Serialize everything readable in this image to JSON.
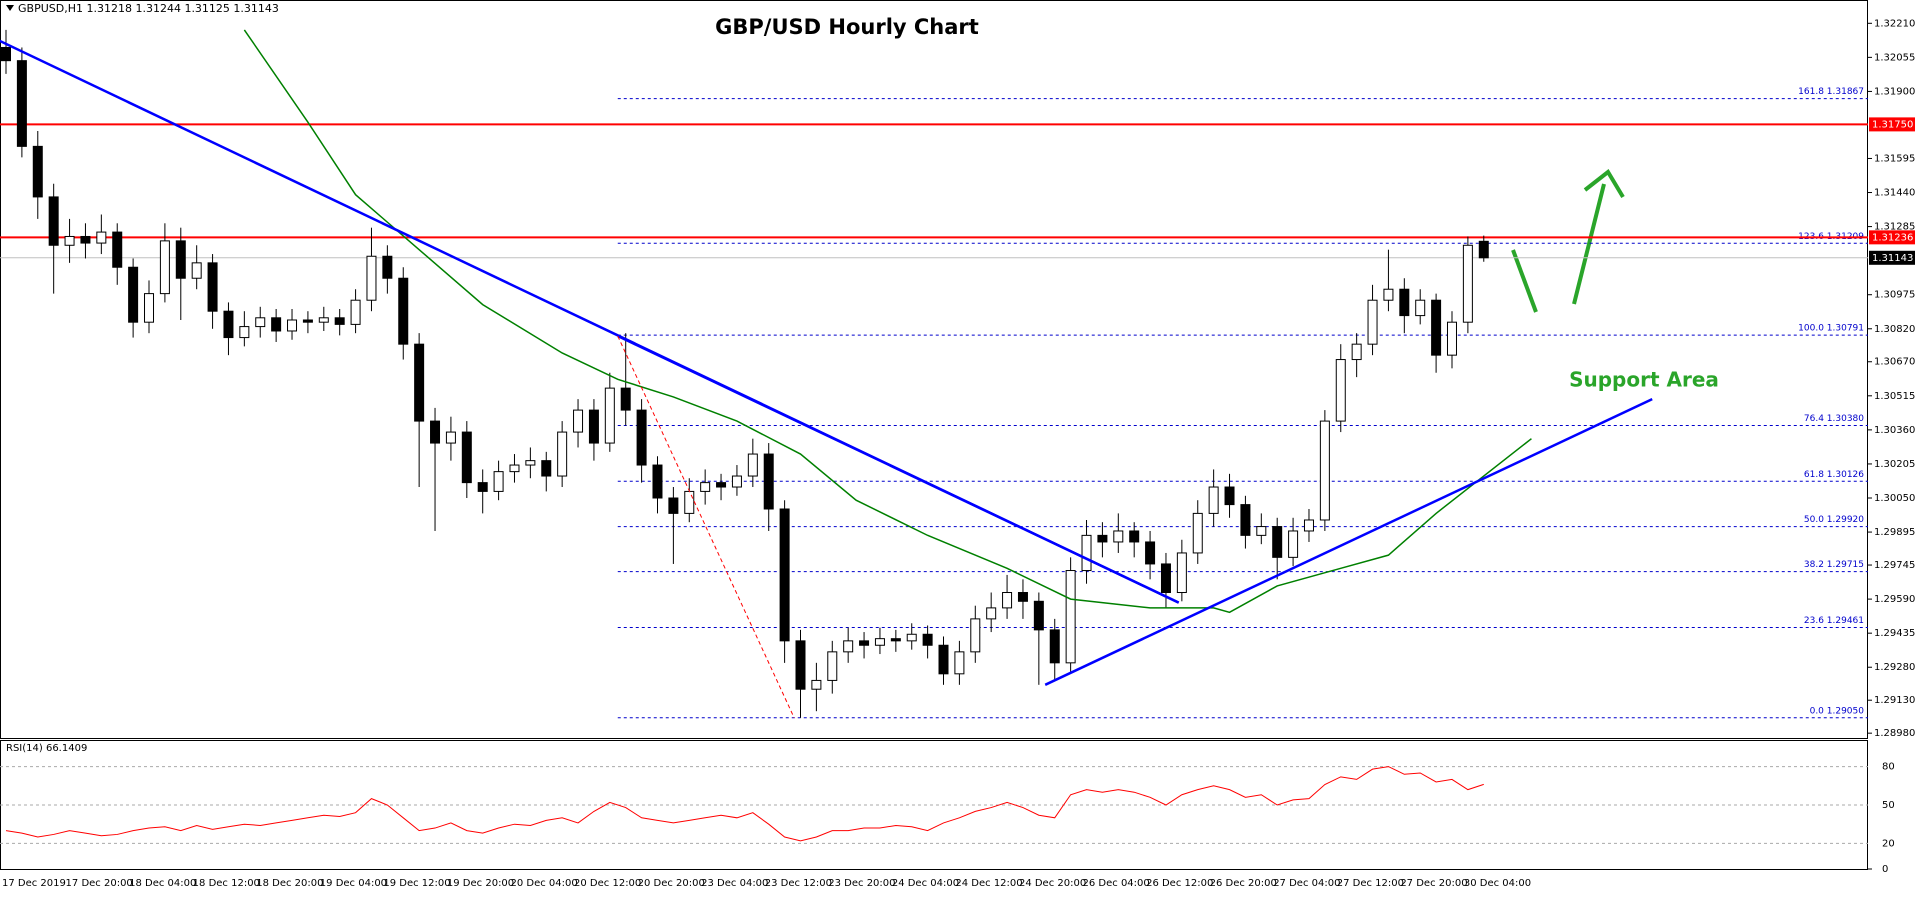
{
  "chart_data": {
    "type": "candlestick",
    "title": "GBP/USD Hourly Chart",
    "header": "GBPUSD,H1  1.31218 1.31244 1.31125 1.31143",
    "annotation": "Support Area",
    "categories": [
      "17 Dec 2019",
      null,
      null,
      null,
      "17 Dec 20:00",
      null,
      null,
      null,
      "18 Dec 04:00",
      null,
      null,
      null,
      "18 Dec 12:00",
      null,
      null,
      null,
      "18 Dec 20:00",
      null,
      null,
      null,
      "19 Dec 04:00",
      null,
      null,
      null,
      "19 Dec 12:00",
      null,
      null,
      null,
      "19 Dec 20:00",
      null,
      null,
      null,
      "20 Dec 04:00",
      null,
      null,
      null,
      "20 Dec 12:00",
      null,
      null,
      null,
      "20 Dec 20:00",
      null,
      null,
      null,
      "23 Dec 04:00",
      null,
      null,
      null,
      "23 Dec 12:00",
      null,
      null,
      null,
      "23 Dec 20:00",
      null,
      null,
      null,
      "24 Dec 04:00",
      null,
      null,
      null,
      "24 Dec 12:00",
      null,
      null,
      null,
      "24 Dec 20:00",
      null,
      null,
      null,
      "26 Dec 04:00",
      null,
      null,
      null,
      "26 Dec 12:00",
      null,
      null,
      null,
      "26 Dec 20:00",
      null,
      null,
      null,
      "27 Dec 04:00",
      null,
      null,
      null,
      "27 Dec 12:00",
      null,
      null,
      null,
      "27 Dec 20:00",
      null,
      null,
      null,
      "30 Dec 04:00",
      null
    ],
    "ohlc": [
      [
        1.321,
        1.3218,
        1.3198,
        1.3204
      ],
      [
        1.3204,
        1.321,
        1.316,
        1.3165
      ],
      [
        1.3165,
        1.3172,
        1.3132,
        1.3142
      ],
      [
        1.3142,
        1.3148,
        1.3098,
        1.312
      ],
      [
        1.312,
        1.3132,
        1.3112,
        1.3124
      ],
      [
        1.3124,
        1.313,
        1.3114,
        1.3121
      ],
      [
        1.3121,
        1.3134,
        1.3116,
        1.3126
      ],
      [
        1.3126,
        1.313,
        1.3102,
        1.311
      ],
      [
        1.311,
        1.3114,
        1.3078,
        1.3085
      ],
      [
        1.3085,
        1.3104,
        1.308,
        1.3098
      ],
      [
        1.3098,
        1.313,
        1.3094,
        1.3122
      ],
      [
        1.3122,
        1.3128,
        1.3086,
        1.3105
      ],
      [
        1.3105,
        1.312,
        1.31,
        1.3112
      ],
      [
        1.3112,
        1.3116,
        1.3082,
        1.309
      ],
      [
        1.309,
        1.3094,
        1.307,
        1.3078
      ],
      [
        1.3078,
        1.309,
        1.3074,
        1.3083
      ],
      [
        1.3083,
        1.3092,
        1.3078,
        1.3087
      ],
      [
        1.3087,
        1.3091,
        1.3076,
        1.3081
      ],
      [
        1.3081,
        1.3091,
        1.3077,
        1.3086
      ],
      [
        1.3086,
        1.309,
        1.308,
        1.3085
      ],
      [
        1.3085,
        1.3092,
        1.3081,
        1.3087
      ],
      [
        1.3087,
        1.3091,
        1.3079,
        1.3084
      ],
      [
        1.3084,
        1.31,
        1.308,
        1.3095
      ],
      [
        1.3095,
        1.3128,
        1.309,
        1.3115
      ],
      [
        1.3115,
        1.312,
        1.3098,
        1.3105
      ],
      [
        1.3105,
        1.311,
        1.3068,
        1.3075
      ],
      [
        1.3075,
        1.308,
        1.301,
        1.304
      ],
      [
        1.304,
        1.3046,
        1.299,
        1.303
      ],
      [
        1.303,
        1.3042,
        1.3022,
        1.3035
      ],
      [
        1.3035,
        1.304,
        1.3005,
        1.3012
      ],
      [
        1.3012,
        1.3018,
        1.2998,
        1.3008
      ],
      [
        1.3008,
        1.3022,
        1.3004,
        1.3017
      ],
      [
        1.3017,
        1.3025,
        1.3012,
        1.302
      ],
      [
        1.302,
        1.3028,
        1.3014,
        1.3022
      ],
      [
        1.3022,
        1.3026,
        1.3008,
        1.3015
      ],
      [
        1.3015,
        1.304,
        1.301,
        1.3035
      ],
      [
        1.3035,
        1.305,
        1.3028,
        1.3045
      ],
      [
        1.3045,
        1.305,
        1.3022,
        1.303
      ],
      [
        1.303,
        1.3062,
        1.3026,
        1.3055
      ],
      [
        1.3055,
        1.308,
        1.3038,
        1.3045
      ],
      [
        1.3045,
        1.305,
        1.3012,
        1.302
      ],
      [
        1.302,
        1.3024,
        1.2998,
        1.3005
      ],
      [
        1.3005,
        1.301,
        1.2975,
        1.2998
      ],
      [
        1.2998,
        1.3014,
        1.2994,
        1.3008
      ],
      [
        1.3008,
        1.3018,
        1.3002,
        1.3012
      ],
      [
        1.3012,
        1.3016,
        1.3004,
        1.301
      ],
      [
        1.301,
        1.302,
        1.3006,
        1.3015
      ],
      [
        1.3015,
        1.3032,
        1.301,
        1.3025
      ],
      [
        1.3025,
        1.303,
        1.299,
        1.3
      ],
      [
        1.3,
        1.3004,
        1.293,
        1.294
      ],
      [
        1.294,
        1.2945,
        1.2905,
        1.2918
      ],
      [
        1.2918,
        1.293,
        1.2908,
        1.2922
      ],
      [
        1.2922,
        1.294,
        1.2916,
        1.2935
      ],
      [
        1.2935,
        1.2946,
        1.293,
        1.294
      ],
      [
        1.294,
        1.2944,
        1.2932,
        1.2938
      ],
      [
        1.2938,
        1.2946,
        1.2934,
        1.2941
      ],
      [
        1.2941,
        1.2945,
        1.2935,
        1.294
      ],
      [
        1.294,
        1.2948,
        1.2936,
        1.2943
      ],
      [
        1.2943,
        1.2947,
        1.2932,
        1.2938
      ],
      [
        1.2938,
        1.2942,
        1.292,
        1.2925
      ],
      [
        1.2925,
        1.294,
        1.292,
        1.2935
      ],
      [
        1.2935,
        1.2956,
        1.293,
        1.295
      ],
      [
        1.295,
        1.2962,
        1.2944,
        1.2955
      ],
      [
        1.2955,
        1.297,
        1.295,
        1.2962
      ],
      [
        1.2962,
        1.2968,
        1.295,
        1.2958
      ],
      [
        1.2958,
        1.2962,
        1.292,
        1.2945
      ],
      [
        1.2945,
        1.295,
        1.2922,
        1.293
      ],
      [
        1.293,
        1.2978,
        1.2926,
        1.2972
      ],
      [
        1.2972,
        1.2995,
        1.2966,
        1.2988
      ],
      [
        1.2988,
        1.2994,
        1.2978,
        1.2985
      ],
      [
        1.2985,
        1.2998,
        1.298,
        1.299
      ],
      [
        1.299,
        1.2994,
        1.2978,
        1.2985
      ],
      [
        1.2985,
        1.299,
        1.2968,
        1.2975
      ],
      [
        1.2975,
        1.298,
        1.2955,
        1.2962
      ],
      [
        1.2962,
        1.2986,
        1.2958,
        1.298
      ],
      [
        1.298,
        1.3004,
        1.2975,
        1.2998
      ],
      [
        1.2998,
        1.3018,
        1.2992,
        1.301
      ],
      [
        1.301,
        1.3016,
        1.2996,
        1.3002
      ],
      [
        1.3002,
        1.3006,
        1.2982,
        1.2988
      ],
      [
        1.2988,
        1.2998,
        1.2984,
        1.2992
      ],
      [
        1.2992,
        1.2996,
        1.2968,
        1.2978
      ],
      [
        1.2978,
        1.2996,
        1.2974,
        1.299
      ],
      [
        1.299,
        1.3,
        1.2985,
        1.2995
      ],
      [
        1.2995,
        1.3045,
        1.299,
        1.304
      ],
      [
        1.304,
        1.3075,
        1.3035,
        1.3068
      ],
      [
        1.3068,
        1.308,
        1.306,
        1.3075
      ],
      [
        1.3075,
        1.3102,
        1.307,
        1.3095
      ],
      [
        1.3095,
        1.3118,
        1.309,
        1.31
      ],
      [
        1.31,
        1.3105,
        1.308,
        1.3088
      ],
      [
        1.3088,
        1.31,
        1.3084,
        1.3095
      ],
      [
        1.3095,
        1.3098,
        1.3062,
        1.307
      ],
      [
        1.307,
        1.309,
        1.3064,
        1.3085
      ],
      [
        1.3085,
        1.3124,
        1.308,
        1.312
      ],
      [
        1.31218,
        1.31244,
        1.31125,
        1.31143
      ]
    ],
    "up_color": "#ffffff",
    "down_color": "#000000",
    "ylim": [
      1.28958,
      1.32316
    ],
    "yticks": [
      {
        "value": 1.3221,
        "label": "1.32210"
      },
      1.32055,
      {
        "value": 1.319,
        "label": "1.31900"
      },
      1.31595,
      {
        "value": 1.3144,
        "label": "1.31440"
      },
      1.31285,
      1.30975,
      {
        "value": 1.3082,
        "label": "1.30820"
      },
      {
        "value": 1.3067,
        "label": "1.30670"
      },
      1.30515,
      {
        "value": 1.3036,
        "label": "1.30360"
      },
      1.30205,
      {
        "value": 1.3005,
        "label": "1.30050"
      },
      1.29895,
      1.29745,
      {
        "value": 1.2959,
        "label": "1.29590"
      },
      1.29435,
      {
        "value": 1.2928,
        "label": "1.29280"
      },
      {
        "value": 1.2913,
        "label": "1.29130"
      },
      {
        "value": 1.2898,
        "label": "1.28980"
      }
    ],
    "hlines": [
      {
        "value": 1.3175,
        "label": "1.31750",
        "color": "#ff0000",
        "label_fill": "#ff0000"
      },
      {
        "value": 1.31236,
        "label": "1.31236",
        "color": "#ff0000",
        "label_fill": "#ff0000"
      },
      {
        "value": 1.31143,
        "label": "1.31143",
        "color": "#c0c0c0",
        "label_fill": "#000000"
      }
    ],
    "fib": {
      "x": 38.5,
      "color": "#0000cc",
      "levels": [
        {
          "value": 1.31867,
          "label": "161.8 1.31867"
        },
        {
          "value": 1.31209,
          "label": "123.6 1.31209"
        },
        {
          "value": 1.30791,
          "label": "100.0 1.30791"
        },
        {
          "value": 1.3038,
          "label": "76.4 1.30380"
        },
        {
          "value": 1.30126,
          "label": "61.8 1.30126"
        },
        {
          "value": 1.2992,
          "label": "50.0 1.29920"
        },
        {
          "value": 1.29715,
          "label": "38.2 1.29715"
        },
        {
          "value": 1.29461,
          "label": "23.6 1.29461"
        },
        {
          "value": 1.2905,
          "label": "0.0 1.29050"
        }
      ]
    },
    "ma": {
      "color": "#008000",
      "x": [
        15,
        19,
        22,
        26,
        30,
        35,
        38.5,
        42,
        46,
        50,
        53.5,
        58,
        63,
        67,
        72,
        76,
        77,
        80,
        84,
        87,
        90,
        96
      ],
      "values": [
        1.3218,
        1.3176,
        1.3143,
        1.3118,
        1.3093,
        1.3071,
        1.3059,
        1.3051,
        1.304,
        1.3025,
        1.3004,
        1.2988,
        1.2973,
        1.2959,
        1.2955,
        1.2955,
        1.2953,
        1.2965,
        1.2973,
        1.2979,
        1.2998,
        1.3032
      ]
    },
    "trendlines": [
      {
        "color": "#0000ff",
        "x": [
          -0.4,
          73.8
        ],
        "values": [
          1.3213,
          1.29574
        ]
      },
      {
        "color": "#0000ff",
        "x": [
          38.5,
          73.8
        ],
        "values": [
          1.30787,
          1.29574
        ]
      },
      {
        "color": "#0000ff",
        "x": [
          65.4,
          103.6
        ],
        "values": [
          1.292,
          1.305
        ]
      },
      {
        "color": "#ff0000",
        "dashed": true,
        "x": [
          38.5,
          49.6
        ],
        "values": [
          1.30787,
          1.2905
        ]
      }
    ],
    "rsi": {
      "label": "RSI(14) 66.1409",
      "color": "#ff0000",
      "ylim": [
        0,
        100
      ],
      "yticks": [
        0,
        20,
        50,
        80
      ],
      "values": [
        30,
        28,
        25,
        27,
        30,
        28,
        26,
        27,
        30,
        32,
        33,
        30,
        34,
        31,
        33,
        35,
        34,
        36,
        38,
        40,
        42,
        41,
        44,
        55,
        50,
        40,
        30,
        32,
        36,
        30,
        28,
        32,
        35,
        34,
        38,
        40,
        36,
        45,
        52,
        48,
        40,
        38,
        36,
        38,
        40,
        42,
        40,
        44,
        35,
        25,
        22,
        25,
        30,
        30,
        32,
        32,
        34,
        33,
        30,
        36,
        40,
        45,
        48,
        52,
        48,
        42,
        40,
        58,
        62,
        60,
        62,
        60,
        56,
        50,
        58,
        62,
        65,
        62,
        56,
        58,
        50,
        54,
        55,
        66,
        72,
        70,
        78,
        80,
        74,
        75,
        68,
        70,
        62,
        66.1409
      ]
    }
  }
}
